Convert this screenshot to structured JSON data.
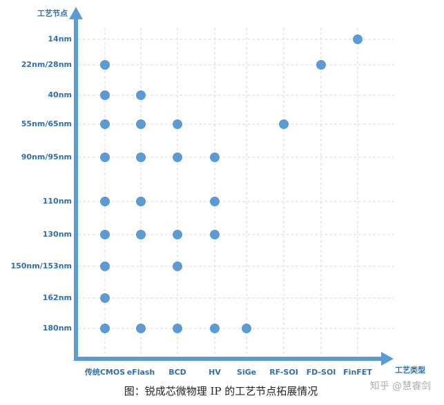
{
  "chart_data": {
    "type": "dot-matrix",
    "caption": "图：锐成芯微物理 IP 的工艺节点拓展情况",
    "watermark": "知乎 @慧睿剑",
    "x_label": "工艺类型",
    "y_label": "工艺节点",
    "x_categories": [
      "传统CMOS",
      "eFlash",
      "BCD",
      "HV",
      "SiGe",
      "RF-SOI",
      "FD-SOI",
      "FinFET"
    ],
    "y_categories": [
      "14nm",
      "22nm/28nm",
      "40nm",
      "55nm/65nm",
      "90nm/95nm",
      "110nm",
      "130nm",
      "150nm/153nm",
      "162nm",
      "180nm"
    ],
    "matrix": [
      [
        0,
        0,
        0,
        0,
        0,
        0,
        0,
        1
      ],
      [
        1,
        0,
        0,
        0,
        0,
        0,
        1,
        0
      ],
      [
        1,
        1,
        0,
        0,
        0,
        0,
        0,
        0
      ],
      [
        1,
        1,
        1,
        0,
        0,
        1,
        0,
        0
      ],
      [
        1,
        1,
        1,
        1,
        0,
        0,
        0,
        0
      ],
      [
        1,
        1,
        0,
        1,
        0,
        0,
        0,
        0
      ],
      [
        1,
        1,
        1,
        1,
        0,
        0,
        0,
        0
      ],
      [
        1,
        0,
        1,
        0,
        0,
        0,
        0,
        0
      ],
      [
        1,
        0,
        0,
        0,
        0,
        0,
        0,
        0
      ],
      [
        1,
        1,
        1,
        1,
        1,
        0,
        0,
        0
      ]
    ],
    "color": "#5b9bd5",
    "grid": true
  }
}
